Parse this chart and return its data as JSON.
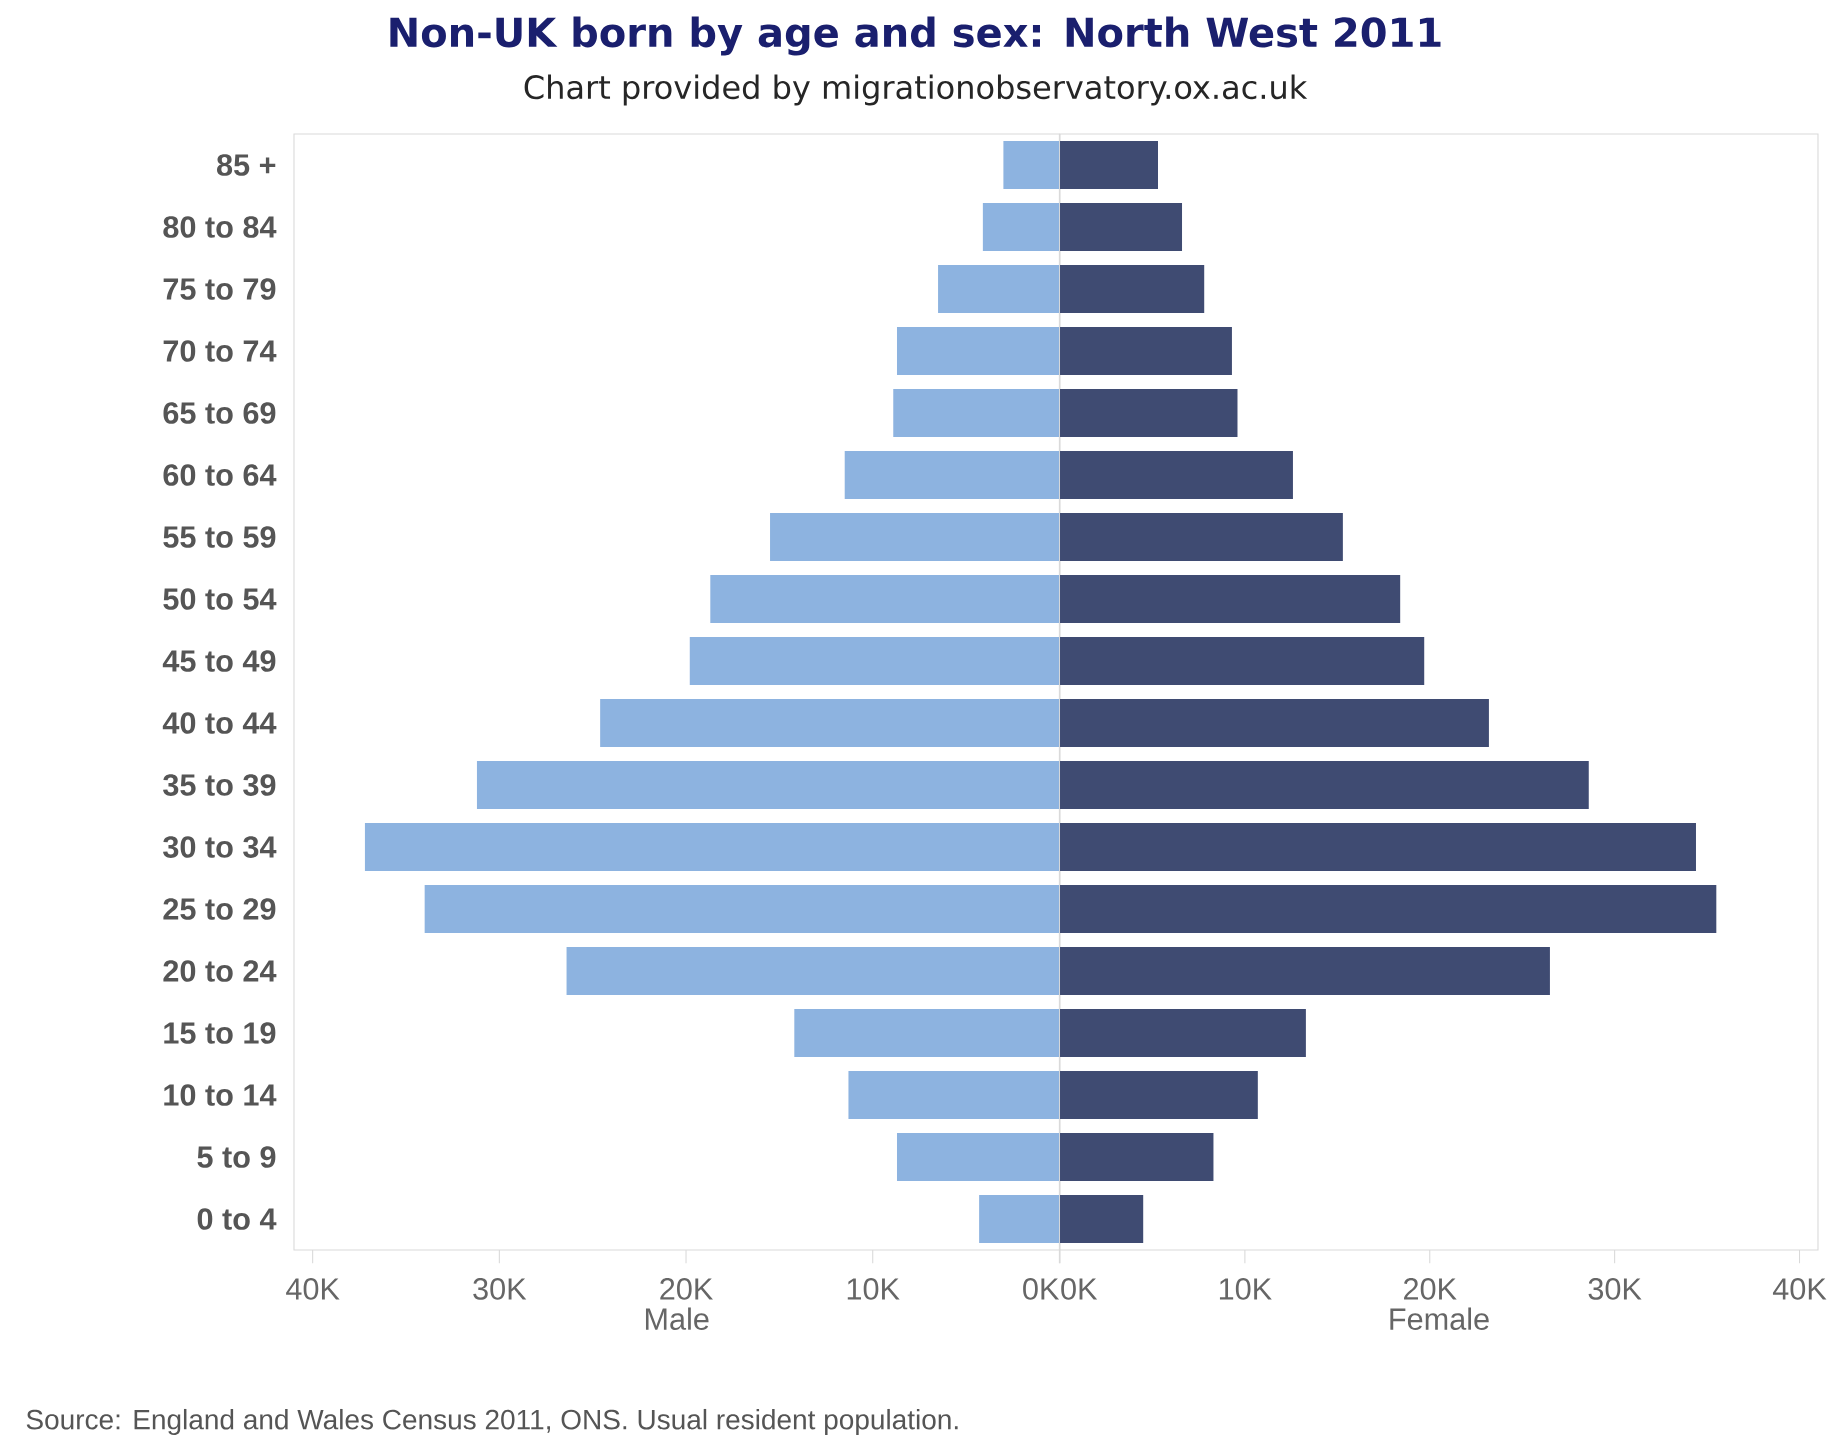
{
  "chart_data": [
    {
      "type": "bar",
      "orientation": "horizontal",
      "title": "Non-UK born by age and sex: North West 2011",
      "subtitle": "Chart provided by migrationobservatory.ox.ac.uk",
      "annotations": [
        "Source: England and Wales Census 2011, ONS. Usual resident population."
      ],
      "xlabel": "Male",
      "categories": [
        "85 +",
        "80 to 84",
        "75 to 79",
        "70 to 74",
        "65 to 69",
        "60 to 64",
        "55 to 59",
        "50 to 54",
        "45 to 49",
        "40 to 44",
        "35 to 39",
        "30 to 34",
        "25 to 29",
        "20 to 24",
        "15 to 19",
        "10 to 14",
        "5 to 9",
        "0 to 4"
      ],
      "series": [
        {
          "color": "#8db3e0",
          "values": [
            3000,
            4100,
            6500,
            8700,
            8900,
            11500,
            15500,
            18700,
            19800,
            24600,
            31200,
            37200,
            34000,
            26400,
            14200,
            11300,
            8700,
            4300
          ]
        }
      ],
      "xlim": [
        41000,
        0
      ],
      "xticks": [
        {
          "value": 40000,
          "label": "40K"
        },
        {
          "value": 30000,
          "label": "30K"
        },
        {
          "value": 20000,
          "label": "20K"
        },
        {
          "value": 10000,
          "label": "10K"
        },
        {
          "value": 0,
          "label": "0K"
        }
      ]
    },
    {
      "type": "bar",
      "orientation": "horizontal",
      "xlabel": "Female",
      "categories": [
        null,
        null,
        null,
        null,
        null,
        null,
        null,
        null,
        null,
        null,
        null,
        null,
        null,
        null,
        null,
        null,
        null,
        null
      ],
      "series": [
        {
          "color": "#3f4b72",
          "values": [
            5300,
            6600,
            7800,
            9300,
            9600,
            12600,
            15300,
            18400,
            19700,
            23200,
            28600,
            34400,
            35500,
            26500,
            13300,
            10700,
            8300,
            4500
          ]
        }
      ],
      "xlim": [
        0,
        41000
      ],
      "xticks": [
        {
          "value": 0,
          "label": "0K"
        },
        {
          "value": 10000,
          "label": "10K"
        },
        {
          "value": 20000,
          "label": "20K"
        },
        {
          "value": 30000,
          "label": "30K"
        },
        {
          "value": 40000,
          "label": "40K"
        }
      ],
      "tick_labels": "x"
    }
  ]
}
